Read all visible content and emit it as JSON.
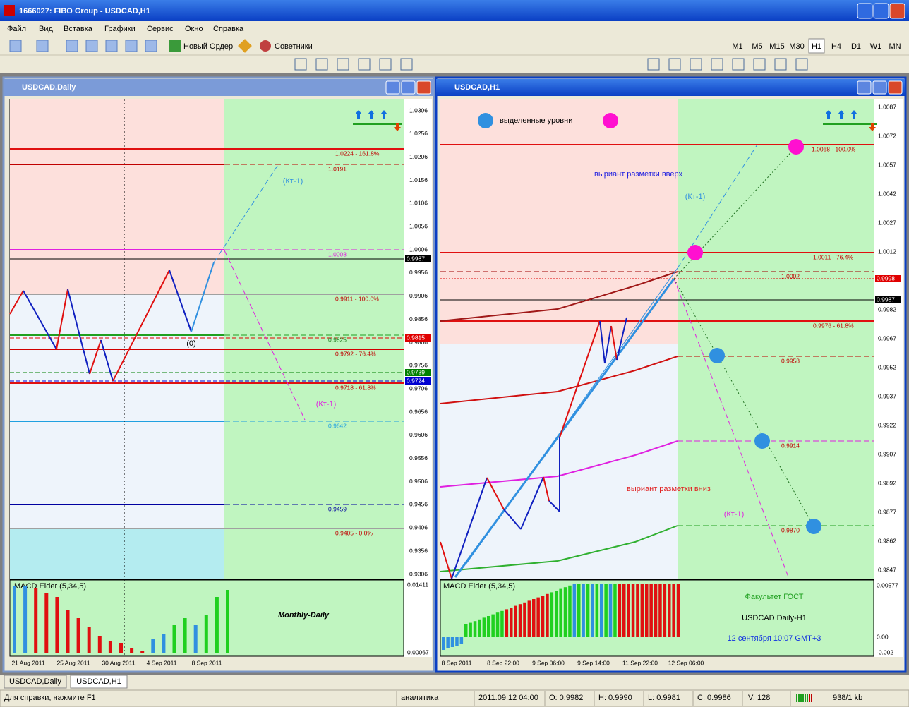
{
  "window": {
    "title": "1666027: FIBO Group - USDCAD,H1"
  },
  "menu": [
    "Файл",
    "Вид",
    "Вставка",
    "Графики",
    "Сервис",
    "Окно",
    "Справка"
  ],
  "toolbar": {
    "new_order": "Новый Ордер",
    "advisors": "Советники",
    "timeframes": [
      "M1",
      "M5",
      "M15",
      "M30",
      "H1",
      "H4",
      "D1",
      "W1",
      "MN"
    ]
  },
  "charts": [
    {
      "title": "USDCAD,Daily",
      "price_labels": [
        "1.0306",
        "1.0256",
        "1.0206",
        "1.0156",
        "1.0106",
        "1.0056",
        "1.0006",
        "0.9956",
        "0.9906",
        "0.9856",
        "0.9806",
        "0.9756",
        "0.9706",
        "0.9656",
        "0.9606",
        "0.9556",
        "0.9506",
        "0.9456",
        "0.9406",
        "0.9356",
        "0.9306"
      ],
      "highlight_labels": [
        "0.9987",
        "0.9815",
        "0.9739",
        "0.9724"
      ],
      "levels": [
        "1.0224 - 161.8%",
        "1.0191",
        "1.0008",
        "0.9911 - 100.0%",
        "0.9825",
        "0.9792 - 76.4%",
        "0.9718 - 61.8%",
        "0.9642",
        "0.9459",
        "0.9405 - 0.0%"
      ],
      "annotations": [
        "(Кт-1)",
        "(Кт-1)",
        "(0)"
      ],
      "dates": [
        "21 Aug 2011",
        "25 Aug 2011",
        "30 Aug 2011",
        "4 Sep 2011",
        "8 Sep 2011"
      ],
      "macd": {
        "title": "MACD Elder (5,34,5)",
        "scale": [
          "0.01411",
          "0.00067"
        ]
      },
      "captions": [
        "Monthly-Daily"
      ]
    },
    {
      "title": "USDCAD,H1",
      "price_labels": [
        "1.0087",
        "1.0072",
        "1.0057",
        "1.0042",
        "1.0027",
        "1.0012",
        "0.9982",
        "0.9967",
        "0.9952",
        "0.9937",
        "0.9922",
        "0.9907",
        "0.9892",
        "0.9877",
        "0.9862",
        "0.9847"
      ],
      "highlight_labels": [
        "0.9998",
        "0.9987"
      ],
      "levels": [
        "1.0068 - 100.0%",
        "1.0011 - 76.4%",
        "1.0002",
        "0.9976 - 61.8%",
        "0.9958",
        "0.9914",
        "0.9870"
      ],
      "annotations": [
        "выделенные уровни",
        "выриант разметки вверх",
        "(Кт-1)",
        "выриант разметки вниз",
        "(Кт-1)"
      ],
      "dates": [
        "8 Sep 2011",
        "8 Sep 22:00",
        "9 Sep 06:00",
        "9 Sep 14:00",
        "11 Sep 22:00",
        "12 Sep 06:00"
      ],
      "macd": {
        "title": "MACD Elder (5,34,5)",
        "scale": [
          "0.00577",
          "0.00",
          "-0.002"
        ]
      },
      "captions": [
        "Факультет ГОСТ",
        "USDCAD Daily-H1",
        "12 сентября 10:07 GMT+3"
      ]
    }
  ],
  "tabs": [
    "USDCAD,Daily",
    "USDCAD,H1"
  ],
  "status": [
    "Для справки, нажмите F1",
    "аналитика",
    "2011.09.12 04:00",
    "O: 0.9982",
    "H: 0.9990",
    "L: 0.9981",
    "C: 0.9986",
    "V: 128",
    "938/1 kb"
  ]
}
